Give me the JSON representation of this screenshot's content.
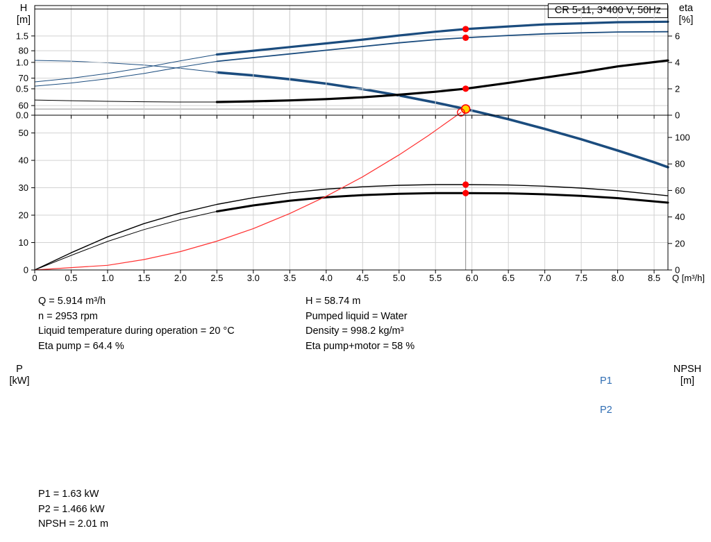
{
  "colors": {
    "blue": "#1b4c7e",
    "blue_label": "#2f6db3",
    "red": "#ff0000",
    "duty_fill": "#ffd700",
    "grid": "#d2d2d2",
    "crosshair": "#8c8c8c",
    "axis": "#000000"
  },
  "labels": {
    "h": "H",
    "h_unit": "[m]",
    "eta": "eta",
    "eta_unit": "[%]",
    "p": "P",
    "p_unit": "[kW]",
    "npsh": "NPSH",
    "npsh_unit": "[m]",
    "p1": "P1",
    "p2": "P2"
  },
  "info_top": {
    "left": [
      "Q = 5.914 m³/h",
      "n = 2953 rpm",
      "Liquid temperature during operation = 20 °C",
      "Eta pump = 64.4 %"
    ],
    "right": [
      "H = 58.74 m",
      "Pumped liquid = Water",
      "Density = 998.2 kg/m³",
      "Eta pump+motor = 58 %"
    ]
  },
  "info_bottom": [
    "P1 = 1.63 kW",
    "P2 = 1.466 kW",
    "NPSH = 2.01 m"
  ],
  "chart_data": [
    {
      "type": "line",
      "title": "CR 5-11, 3*400 V, 50Hz",
      "xlabel": "Q [m³/h]",
      "ylabel_left": "H [m]",
      "ylabel_right": "eta [%]",
      "xlim": [
        0,
        8.69
      ],
      "ylim_left": [
        0,
        96.5
      ],
      "ylim_right": [
        0,
        199.5
      ],
      "grid": true,
      "xticks": {
        "values": [
          0,
          0.5,
          1,
          1.5,
          2,
          2.5,
          3,
          3.5,
          4,
          4.5,
          5,
          5.5,
          6,
          6.5,
          7,
          7.5,
          8,
          8.5
        ],
        "labels": [
          "0",
          "0.5",
          "1.0",
          "1.5",
          "2.0",
          "2.5",
          "3.0",
          "3.5",
          "4.0",
          "4.5",
          "5.0",
          "5.5",
          "6.0",
          "6.5",
          "7.0",
          "7.5",
          "8.0",
          "8.5"
        ]
      },
      "yticks_left": {
        "values": [
          0,
          10,
          20,
          30,
          40,
          50,
          60,
          70,
          80
        ],
        "labels": [
          "0",
          "10",
          "20",
          "30",
          "40",
          "50",
          "60",
          "70",
          "80"
        ]
      },
      "yticks_right": {
        "values": [
          0,
          20,
          40,
          60,
          80,
          100
        ],
        "labels": [
          "0",
          "20",
          "40",
          "60",
          "80",
          "100"
        ]
      },
      "series": [
        {
          "name": "head-lead",
          "axis": "left",
          "color": "#1b4c7e",
          "width": 1,
          "points": [
            [
              0,
              76.5
            ],
            [
              0.5,
              76.2
            ],
            [
              1,
              75.6
            ],
            [
              1.5,
              74.8
            ],
            [
              2,
              73.6
            ],
            [
              2.5,
              72.1
            ]
          ]
        },
        {
          "name": "head",
          "axis": "left",
          "color": "#1b4c7e",
          "width": 3.6,
          "points": [
            [
              2.5,
              72.1
            ],
            [
              3,
              71.0
            ],
            [
              3.5,
              69.6
            ],
            [
              4,
              68.0
            ],
            [
              4.5,
              66.0
            ],
            [
              5,
              63.7
            ],
            [
              5.5,
              61.1
            ],
            [
              5.914,
              58.74
            ],
            [
              6.5,
              55.0
            ],
            [
              7,
              51.5
            ],
            [
              7.5,
              47.7
            ],
            [
              8,
              43.6
            ],
            [
              8.5,
              39.3
            ],
            [
              8.69,
              37.5
            ]
          ]
        },
        {
          "name": "eta-pump",
          "axis": "right",
          "color": "#000000",
          "width": 1.4,
          "points": [
            [
              0,
              0
            ],
            [
              0.5,
              13
            ],
            [
              1,
              25
            ],
            [
              1.5,
              35
            ],
            [
              2,
              43
            ],
            [
              2.5,
              49.5
            ],
            [
              3,
              54.5
            ],
            [
              3.5,
              58.3
            ],
            [
              4,
              61
            ],
            [
              4.5,
              62.8
            ],
            [
              5,
              63.9
            ],
            [
              5.5,
              64.4
            ],
            [
              5.914,
              64.4
            ],
            [
              6.5,
              64.1
            ],
            [
              7,
              63.2
            ],
            [
              7.5,
              61.8
            ],
            [
              8,
              59.8
            ],
            [
              8.69,
              56.0
            ]
          ]
        },
        {
          "name": "eta-pump-motor-lead",
          "axis": "right",
          "color": "#000000",
          "width": 1,
          "points": [
            [
              0,
              0
            ],
            [
              0.5,
              11
            ],
            [
              1,
              21.5
            ],
            [
              1.5,
              30.5
            ],
            [
              2,
              38
            ],
            [
              2.5,
              44.2
            ]
          ]
        },
        {
          "name": "eta-pump-motor",
          "axis": "right",
          "color": "#000000",
          "width": 3,
          "points": [
            [
              2.5,
              44.2
            ],
            [
              3,
              48.7
            ],
            [
              3.5,
              52.2
            ],
            [
              4,
              54.8
            ],
            [
              4.5,
              56.5
            ],
            [
              5,
              57.5
            ],
            [
              5.5,
              58
            ],
            [
              5.914,
              58
            ],
            [
              6.5,
              57.8
            ],
            [
              7,
              57.1
            ],
            [
              7.5,
              55.9
            ],
            [
              8,
              54.2
            ],
            [
              8.69,
              50.8
            ]
          ]
        },
        {
          "name": "system-curve",
          "axis": "left",
          "color": "#ff3030",
          "width": 1.2,
          "points": [
            [
              0,
              0
            ],
            [
              1,
              1.7
            ],
            [
              1.5,
              3.8
            ],
            [
              2,
              6.7
            ],
            [
              2.5,
              10.5
            ],
            [
              3,
              15.1
            ],
            [
              3.5,
              20.6
            ],
            [
              4,
              26.9
            ],
            [
              4.5,
              34.0
            ],
            [
              5,
              42.0
            ],
            [
              5.4,
              49.0
            ],
            [
              5.85,
              57.5
            ]
          ]
        }
      ],
      "crosshair": {
        "x": 5.914,
        "y": 58.74
      },
      "markers": [
        {
          "x": 5.914,
          "y": 58.74,
          "axis": "left",
          "kind": "duty"
        },
        {
          "x": 5.85,
          "y": 57.5,
          "axis": "left",
          "kind": "open"
        },
        {
          "x": 5.914,
          "y": 64.4,
          "axis": "right",
          "kind": "dot"
        },
        {
          "x": 5.914,
          "y": 58,
          "axis": "right",
          "kind": "dot"
        }
      ]
    },
    {
      "type": "line",
      "title": "",
      "xlabel": "",
      "ylabel_left": "P [kW]",
      "ylabel_right": "NPSH [m]",
      "xlim": [
        0,
        8.69
      ],
      "ylim_left": [
        0,
        2.01
      ],
      "ylim_right": [
        0,
        8.05
      ],
      "grid": true,
      "xticks": {
        "values": [
          0,
          0.5,
          1,
          1.5,
          2,
          2.5,
          3,
          3.5,
          4,
          4.5,
          5,
          5.5,
          6,
          6.5,
          7,
          7.5,
          8,
          8.5
        ],
        "labels": [
          "0",
          "0.5",
          "1.0",
          "1.5",
          "2.0",
          "2.5",
          "3.0",
          "3.5",
          "4.0",
          "4.5",
          "5.0",
          "5.5",
          "6.0",
          "6.5",
          "7.0",
          "7.5",
          "8.0",
          "8.5"
        ]
      },
      "yticks_left": {
        "values": [
          0,
          0.5,
          1,
          1.5
        ],
        "labels": [
          "0.0",
          "0.5",
          "1.0",
          "1.5"
        ]
      },
      "yticks_right": {
        "values": [
          0,
          2,
          4,
          6
        ],
        "labels": [
          "0",
          "2",
          "4",
          "6"
        ]
      },
      "series": [
        {
          "name": "p1-lead",
          "axis": "left",
          "color": "#1b4c7e",
          "width": 1,
          "points": [
            [
              0,
              0.63
            ],
            [
              0.5,
              0.7
            ],
            [
              1,
              0.79
            ],
            [
              1.5,
              0.9
            ],
            [
              2,
              1.03
            ],
            [
              2.5,
              1.15
            ]
          ]
        },
        {
          "name": "p1",
          "axis": "left",
          "color": "#1b4c7e",
          "width": 3.2,
          "points": [
            [
              2.5,
              1.15
            ],
            [
              3,
              1.22
            ],
            [
              3.5,
              1.29
            ],
            [
              4,
              1.36
            ],
            [
              4.5,
              1.43
            ],
            [
              5,
              1.51
            ],
            [
              5.5,
              1.58
            ],
            [
              5.914,
              1.63
            ],
            [
              6.5,
              1.68
            ],
            [
              7,
              1.72
            ],
            [
              7.5,
              1.74
            ],
            [
              8,
              1.76
            ],
            [
              8.69,
              1.77
            ]
          ]
        },
        {
          "name": "p2-lead",
          "axis": "left",
          "color": "#1b4c7e",
          "width": 1,
          "points": [
            [
              0,
              0.55
            ],
            [
              0.5,
              0.61
            ],
            [
              1,
              0.69
            ],
            [
              1.5,
              0.79
            ],
            [
              2,
              0.91
            ],
            [
              2.5,
              1.02
            ]
          ]
        },
        {
          "name": "p2",
          "axis": "left",
          "color": "#1b4c7e",
          "width": 1.8,
          "points": [
            [
              2.5,
              1.02
            ],
            [
              3,
              1.09
            ],
            [
              3.5,
              1.16
            ],
            [
              4,
              1.23
            ],
            [
              4.5,
              1.3
            ],
            [
              5,
              1.37
            ],
            [
              5.5,
              1.43
            ],
            [
              5.914,
              1.466
            ],
            [
              6.5,
              1.51
            ],
            [
              7,
              1.54
            ],
            [
              7.5,
              1.56
            ],
            [
              8,
              1.575
            ],
            [
              8.69,
              1.58
            ]
          ]
        },
        {
          "name": "npsh-lead",
          "axis": "right",
          "color": "#000000",
          "width": 1,
          "points": [
            [
              0,
              1.15
            ],
            [
              0.5,
              1.1
            ],
            [
              1,
              1.05
            ],
            [
              1.5,
              1.02
            ],
            [
              2,
              1.0
            ],
            [
              2.5,
              1.0
            ]
          ]
        },
        {
          "name": "npsh",
          "axis": "right",
          "color": "#000000",
          "width": 3.2,
          "points": [
            [
              2.5,
              1.0
            ],
            [
              3,
              1.05
            ],
            [
              3.5,
              1.12
            ],
            [
              4,
              1.22
            ],
            [
              4.5,
              1.36
            ],
            [
              5,
              1.55
            ],
            [
              5.5,
              1.78
            ],
            [
              5.914,
              2.01
            ],
            [
              6.5,
              2.45
            ],
            [
              7,
              2.85
            ],
            [
              7.5,
              3.25
            ],
            [
              8,
              3.7
            ],
            [
              8.69,
              4.15
            ]
          ]
        }
      ],
      "markers": [
        {
          "x": 5.914,
          "y": 1.63,
          "axis": "left",
          "kind": "dot"
        },
        {
          "x": 5.914,
          "y": 1.466,
          "axis": "left",
          "kind": "dot"
        },
        {
          "x": 5.914,
          "y": 2.01,
          "axis": "right",
          "kind": "dot"
        }
      ]
    }
  ]
}
